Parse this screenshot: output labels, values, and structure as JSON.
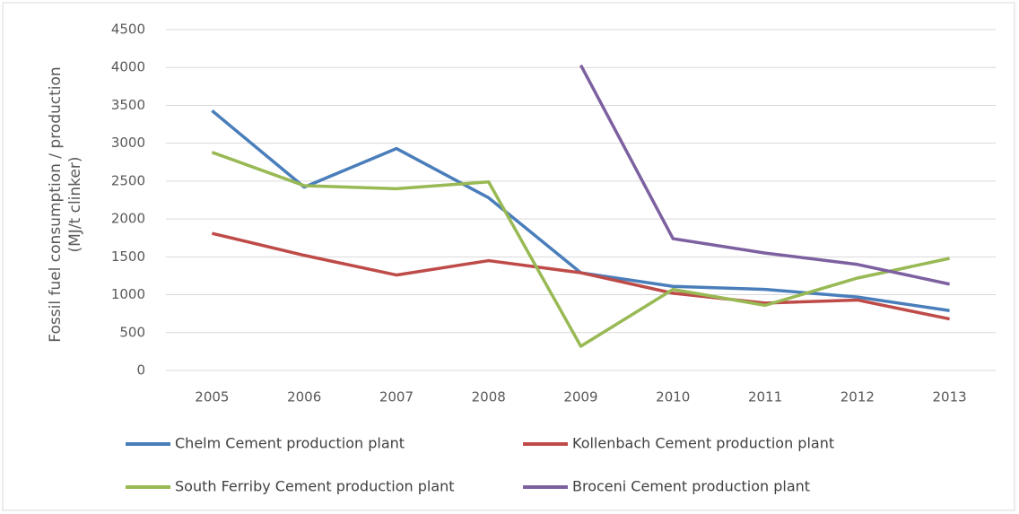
{
  "chart_data": {
    "type": "line",
    "ylabel": [
      "Fossil fuel consumption / production",
      "(MJ/t clinker)"
    ],
    "categories": [
      "2005",
      "2006",
      "2007",
      "2008",
      "2009",
      "2010",
      "2011",
      "2012",
      "2013"
    ],
    "series": [
      {
        "name": "Chelm Cement production plant",
        "color": "#4a7ebb",
        "values": [
          3430,
          2420,
          2930,
          2280,
          1290,
          1110,
          1070,
          970,
          790
        ]
      },
      {
        "name": "Kollenbach Cement production plant",
        "color": "#be4b48",
        "values": [
          1810,
          1520,
          1260,
          1450,
          1290,
          1020,
          890,
          930,
          680
        ]
      },
      {
        "name": "South Ferriby Cement production plant",
        "color": "#98b954",
        "values": [
          2880,
          2440,
          2400,
          2490,
          320,
          1070,
          860,
          1220,
          1480
        ]
      },
      {
        "name": "Broceni Cement production plant",
        "color": "#7d60a0",
        "values": [
          null,
          null,
          null,
          null,
          4030,
          1740,
          1550,
          1400,
          1140
        ]
      }
    ],
    "ylim": [
      0,
      4500
    ],
    "yticks": [
      0,
      500,
      1000,
      1500,
      2000,
      2500,
      3000,
      3500,
      4000,
      4500
    ],
    "grid": true
  }
}
